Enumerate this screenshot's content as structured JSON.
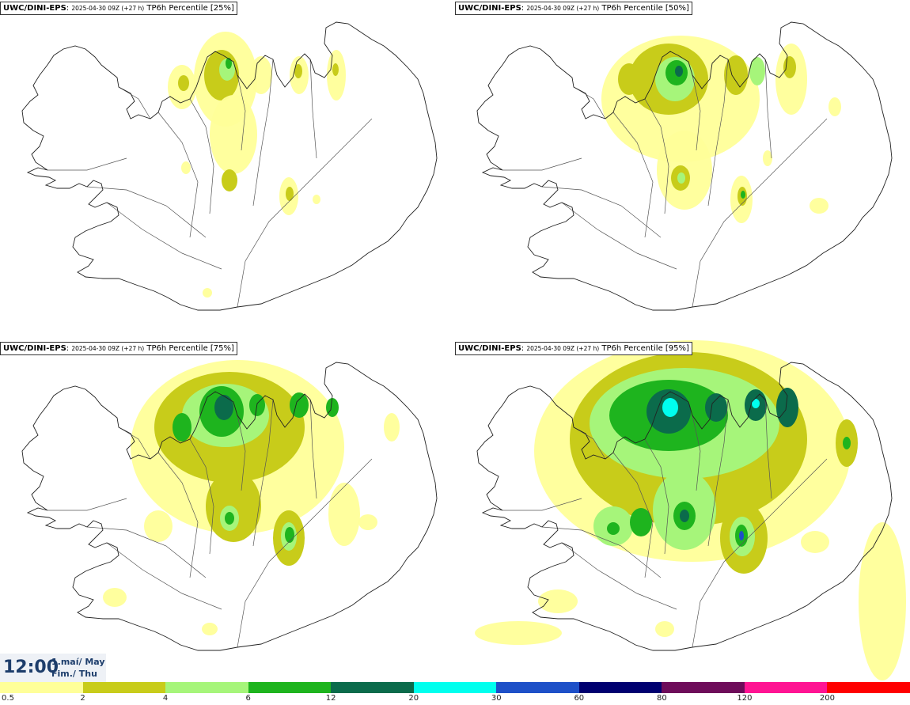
{
  "panels": [
    {
      "model": "UWC/DINI-EPS",
      "run": "2025-04-30 09Z (+27 h)",
      "label": "TP6h Percentile [25%]"
    },
    {
      "model": "UWC/DINI-EPS",
      "run": "2025-04-30 09Z (+27 h)",
      "label": "TP6h Percentile [50%]"
    },
    {
      "model": "UWC/DINI-EPS",
      "run": "2025-04-30 09Z (+27 h)",
      "label": "TP6h Percentile [75%]"
    },
    {
      "model": "UWC/DINI-EPS",
      "run": "2025-04-30 09Z (+27 h)",
      "label": "TP6h Percentile [95%]"
    }
  ],
  "time": {
    "clock": "12:00",
    "date_line1": "1.maí/ May",
    "date_line2": "Fim./ Thu"
  },
  "legend": {
    "labels": [
      "0.5",
      "2",
      "4",
      "6",
      "12",
      "20",
      "30",
      "60",
      "80",
      "120",
      "200"
    ],
    "colors": [
      "#ffff99",
      "#c8cc1a",
      "#a6f57a",
      "#1eb41e",
      "#0b6b4b",
      "#00ffee",
      "#1e50c8",
      "#000070",
      "#6e0c5a",
      "#ff1493",
      "#ff0000"
    ]
  }
}
